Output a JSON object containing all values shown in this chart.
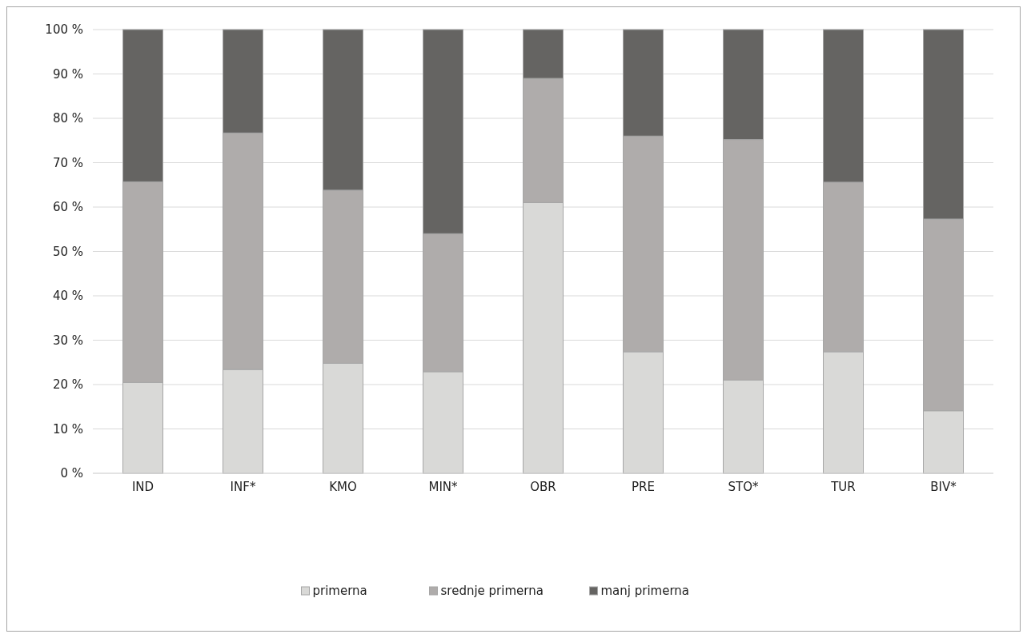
{
  "chart_data": {
    "type": "bar",
    "stacked": true,
    "categories": [
      "IND",
      "INF*",
      "KMO",
      "MIN*",
      "OBR",
      "PRE",
      "STO*",
      "TUR",
      "BIV*"
    ],
    "series": [
      {
        "name": "primerna",
        "color": "#d9d9d7",
        "values": [
          20.5,
          23.4,
          24.8,
          22.9,
          61,
          27.4,
          21,
          27.4,
          14.1
        ]
      },
      {
        "name": "srednje primerna",
        "color": "#afacab",
        "values": [
          45.2,
          53.3,
          39,
          31.1,
          28,
          48.6,
          54.2,
          38.2,
          43.2
        ]
      },
      {
        "name": "manj primerna",
        "color": "#656462",
        "values": [
          34.3,
          23.3,
          36.2,
          46,
          11,
          24,
          24.8,
          34.4,
          42.7
        ]
      }
    ],
    "ylim": [
      0,
      100
    ],
    "yticks": [
      {
        "value": 0,
        "label": "0 %"
      },
      {
        "value": 10,
        "label": "10 %"
      },
      {
        "value": 20,
        "label": "20 %"
      },
      {
        "value": 30,
        "label": "30 %"
      },
      {
        "value": 40,
        "label": "40 %"
      },
      {
        "value": 50,
        "label": "50 %"
      },
      {
        "value": 60,
        "label": "60 %"
      },
      {
        "value": 70,
        "label": "70 %"
      },
      {
        "value": 80,
        "label": "80 %"
      },
      {
        "value": 90,
        "label": "90 %"
      },
      {
        "value": 100,
        "label": "100 %"
      }
    ],
    "grid": "y",
    "legend": "bottom"
  }
}
